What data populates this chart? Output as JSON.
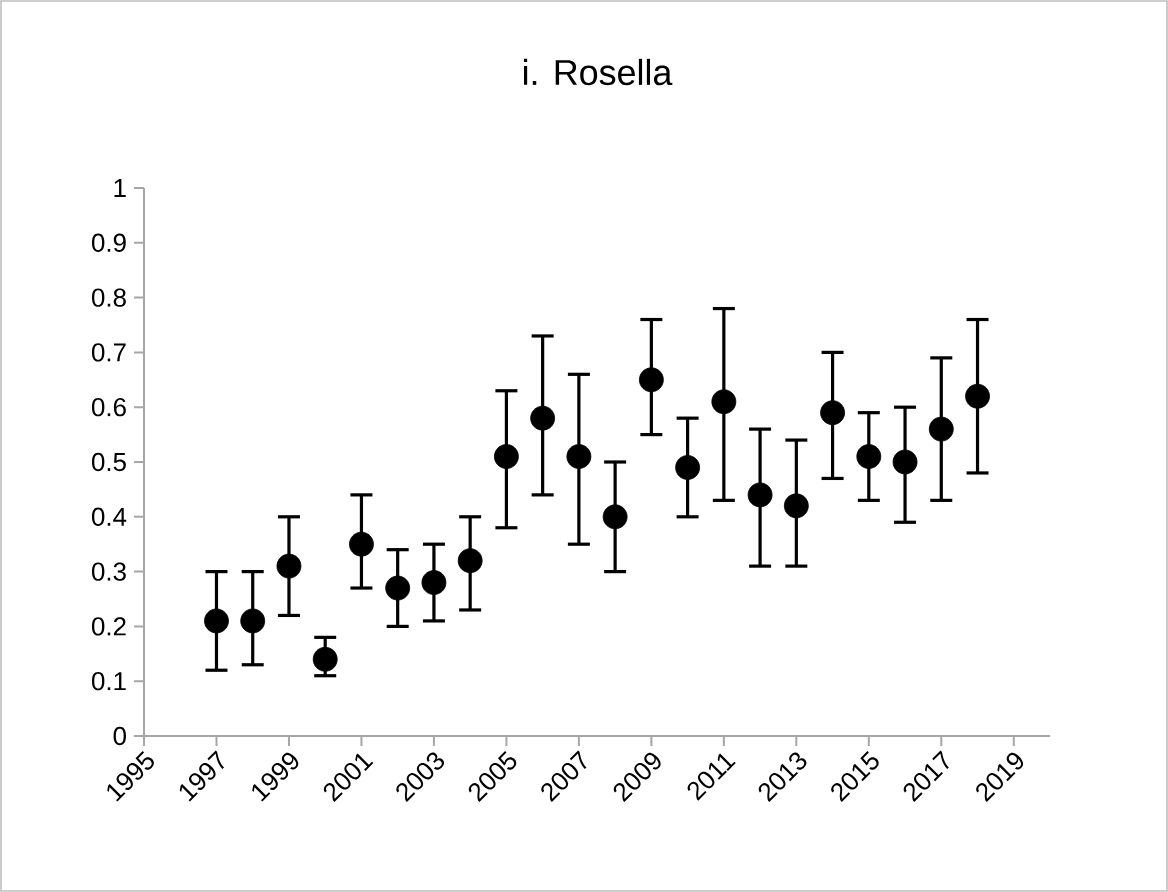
{
  "chart_data": {
    "type": "scatter",
    "title": "i. Rosella",
    "x": [
      1997,
      1998,
      1999,
      2000,
      2001,
      2002,
      2003,
      2004,
      2005,
      2006,
      2007,
      2008,
      2009,
      2010,
      2011,
      2012,
      2013,
      2014,
      2015,
      2016,
      2017,
      2018
    ],
    "values": [
      0.21,
      0.21,
      0.31,
      0.14,
      0.35,
      0.27,
      0.28,
      0.32,
      0.51,
      0.58,
      0.51,
      0.4,
      0.65,
      0.49,
      0.61,
      0.44,
      0.42,
      0.59,
      0.51,
      0.5,
      0.56,
      0.62
    ],
    "errors": [
      [
        0.12,
        0.3
      ],
      [
        0.13,
        0.3
      ],
      [
        0.22,
        0.4
      ],
      [
        0.11,
        0.18
      ],
      [
        0.27,
        0.44
      ],
      [
        0.2,
        0.34
      ],
      [
        0.21,
        0.35
      ],
      [
        0.23,
        0.4
      ],
      [
        0.38,
        0.63
      ],
      [
        0.44,
        0.73
      ],
      [
        0.35,
        0.66
      ],
      [
        0.3,
        0.5
      ],
      [
        0.55,
        0.76
      ],
      [
        0.4,
        0.58
      ],
      [
        0.43,
        0.78
      ],
      [
        0.31,
        0.56
      ],
      [
        0.31,
        0.54
      ],
      [
        0.47,
        0.7
      ],
      [
        0.43,
        0.59
      ],
      [
        0.39,
        0.6
      ],
      [
        0.43,
        0.69
      ],
      [
        0.48,
        0.76
      ]
    ],
    "color": "#000000",
    "marker": "circle",
    "xlim": [
      1995,
      2020
    ],
    "xticks": [
      1995,
      1997,
      1999,
      2001,
      2003,
      2005,
      2007,
      2009,
      2011,
      2013,
      2015,
      2017,
      2019
    ],
    "ylim": [
      0,
      1
    ],
    "yticks": [
      0,
      0.1,
      0.2,
      0.3,
      0.4,
      0.5,
      0.6,
      0.7,
      0.8,
      0.9,
      1
    ]
  }
}
